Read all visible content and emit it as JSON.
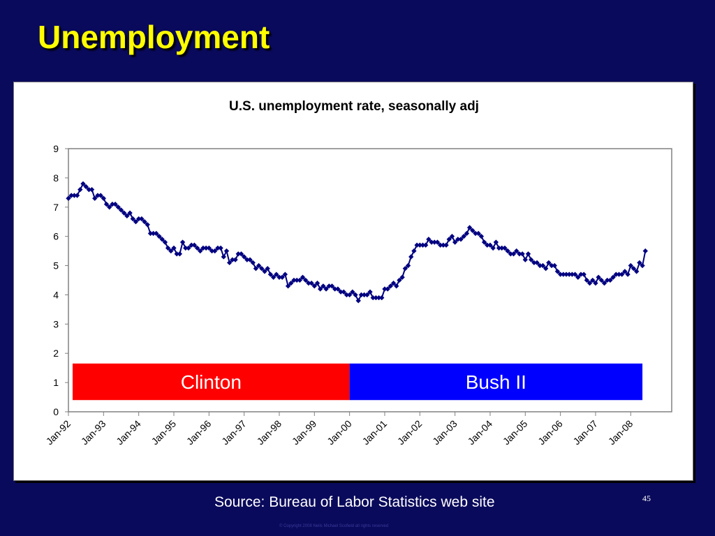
{
  "slide": {
    "title": "Unemployment",
    "source": "Source:  Bureau of Labor Statistics web site",
    "page_number": "45",
    "copyright": "© Copyright 2008 Neils Michael Scofield  all rights reserved"
  },
  "colors": {
    "background": "#0a0a5c",
    "title": "#ffff00",
    "series_line": "#000080",
    "clinton": "#ff0000",
    "bush": "#0000ff"
  },
  "chart_data": {
    "type": "line",
    "title": "U.S. unemployment rate, seasonally adj",
    "xlabel": "",
    "ylabel": "",
    "ylim": [
      0,
      9
    ],
    "yticks": [
      0,
      1,
      2,
      3,
      4,
      5,
      6,
      7,
      8,
      9
    ],
    "xticks": [
      "Jan-92",
      "Jan-93",
      "Jan-94",
      "Jan-95",
      "Jan-96",
      "Jan-97",
      "Jan-98",
      "Jan-99",
      "Jan-00",
      "Jan-01",
      "Jan-02",
      "Jan-03",
      "Jan-04",
      "Jan-05",
      "Jan-06",
      "Jan-07",
      "Jan-08"
    ],
    "start": "Jan-92",
    "frequency": "monthly",
    "grid": false,
    "legend": "none",
    "series": [
      {
        "values": [
          7.3,
          7.4,
          7.4,
          7.4,
          7.6,
          7.8,
          7.7,
          7.6,
          7.6,
          7.3,
          7.4,
          7.4,
          7.3,
          7.1,
          7.0,
          7.1,
          7.1,
          7.0,
          6.9,
          6.8,
          6.7,
          6.8,
          6.6,
          6.5,
          6.6,
          6.6,
          6.5,
          6.4,
          6.1,
          6.1,
          6.1,
          6.0,
          5.9,
          5.8,
          5.6,
          5.5,
          5.6,
          5.4,
          5.4,
          5.8,
          5.6,
          5.6,
          5.7,
          5.7,
          5.6,
          5.5,
          5.6,
          5.6,
          5.6,
          5.5,
          5.5,
          5.6,
          5.6,
          5.3,
          5.5,
          5.1,
          5.2,
          5.2,
          5.4,
          5.4,
          5.3,
          5.2,
          5.2,
          5.1,
          4.9,
          5.0,
          4.9,
          4.8,
          4.9,
          4.7,
          4.6,
          4.7,
          4.6,
          4.6,
          4.7,
          4.3,
          4.4,
          4.5,
          4.5,
          4.5,
          4.6,
          4.5,
          4.4,
          4.4,
          4.3,
          4.4,
          4.2,
          4.3,
          4.2,
          4.3,
          4.3,
          4.2,
          4.2,
          4.1,
          4.1,
          4.0,
          4.0,
          4.1,
          4.0,
          3.8,
          4.0,
          4.0,
          4.0,
          4.1,
          3.9,
          3.9,
          3.9,
          3.9,
          4.2,
          4.2,
          4.3,
          4.4,
          4.3,
          4.5,
          4.6,
          4.9,
          5.0,
          5.3,
          5.5,
          5.7,
          5.7,
          5.7,
          5.7,
          5.9,
          5.8,
          5.8,
          5.8,
          5.7,
          5.7,
          5.7,
          5.9,
          6.0,
          5.8,
          5.9,
          5.9,
          6.0,
          6.1,
          6.3,
          6.2,
          6.1,
          6.1,
          6.0,
          5.8,
          5.7,
          5.7,
          5.6,
          5.8,
          5.6,
          5.6,
          5.6,
          5.5,
          5.4,
          5.4,
          5.5,
          5.4,
          5.4,
          5.2,
          5.4,
          5.2,
          5.1,
          5.1,
          5.0,
          5.0,
          4.9,
          5.1,
          5.0,
          5.0,
          4.8,
          4.7,
          4.7,
          4.7,
          4.7,
          4.7,
          4.7,
          4.6,
          4.7,
          4.7,
          4.5,
          4.4,
          4.5,
          4.4,
          4.6,
          4.5,
          4.4,
          4.5,
          4.5,
          4.6,
          4.7,
          4.7,
          4.7,
          4.8,
          4.7,
          5.0,
          4.9,
          4.8,
          5.1,
          5.0,
          5.5
        ]
      }
    ],
    "annotations": [
      {
        "label": "Clinton",
        "from": "Jan-92",
        "to": "Jan-00",
        "y_from": 0.4,
        "y_to": 1.65,
        "color": "#ff0000"
      },
      {
        "label": "Bush II",
        "from": "Jan-00",
        "to": "May-08",
        "y_from": 0.4,
        "y_to": 1.65,
        "color": "#0000ff"
      }
    ]
  }
}
